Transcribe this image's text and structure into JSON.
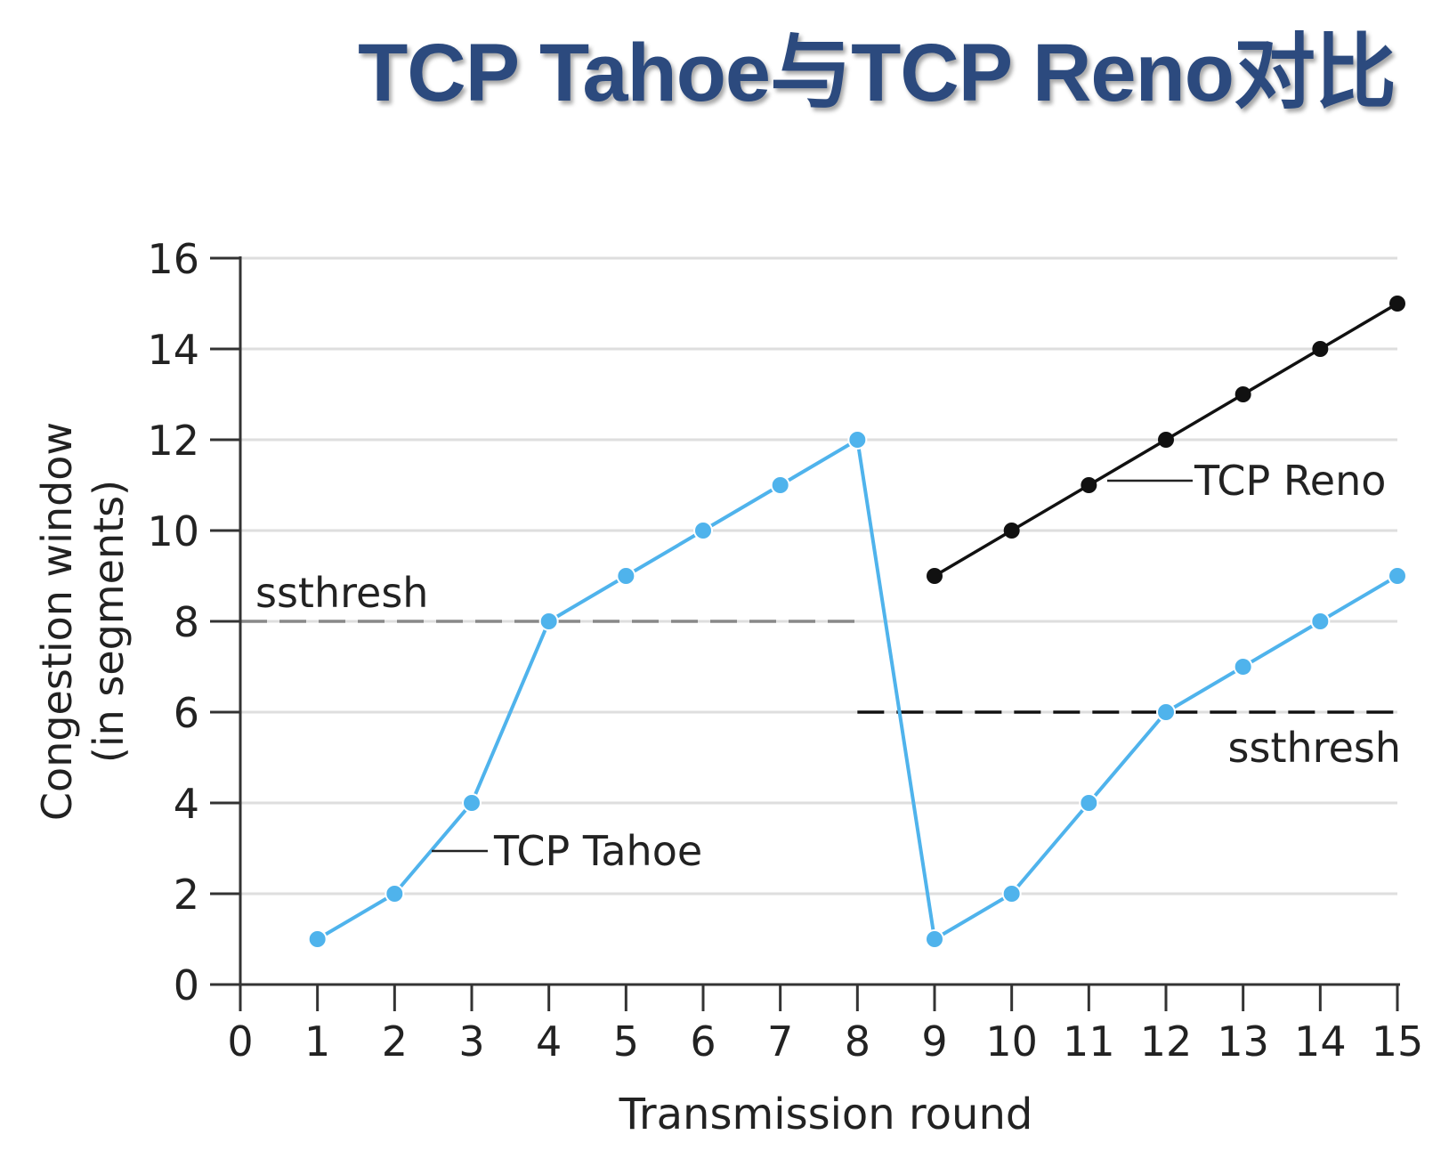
{
  "page": {
    "title": "TCP Tahoe与TCP Reno对比"
  },
  "chart_data": {
    "type": "line",
    "xlabel": "Transmission round",
    "ylabel": [
      "Congestion window",
      "(in segments)"
    ],
    "xlim": [
      0,
      15
    ],
    "ylim": [
      0,
      16
    ],
    "x_ticks": [
      0,
      1,
      2,
      3,
      4,
      5,
      6,
      7,
      8,
      9,
      10,
      11,
      12,
      13,
      14,
      15
    ],
    "y_ticks": [
      0,
      2,
      4,
      6,
      8,
      10,
      12,
      14,
      16
    ],
    "grid": true,
    "series": [
      {
        "name": "TCP Tahoe",
        "color": "#4fb3ec",
        "x": [
          1,
          2,
          3,
          4,
          5,
          6,
          7,
          8,
          9,
          10,
          11,
          12,
          13,
          14,
          15
        ],
        "y": [
          1,
          2,
          4,
          8,
          9,
          10,
          11,
          12,
          1,
          2,
          4,
          6,
          7,
          8,
          9
        ]
      },
      {
        "name": "TCP Reno",
        "color": "#111111",
        "x": [
          9,
          10,
          11,
          12,
          13,
          14,
          15
        ],
        "y": [
          9,
          10,
          11,
          12,
          13,
          14,
          15
        ]
      }
    ],
    "thresholds": [
      {
        "label": "ssthresh",
        "y": 8,
        "x_start": 0,
        "x_end": 8,
        "color": "#888888"
      },
      {
        "label": "ssthresh",
        "y": 6,
        "x_start": 8,
        "x_end": 15,
        "color": "#111111"
      }
    ]
  }
}
